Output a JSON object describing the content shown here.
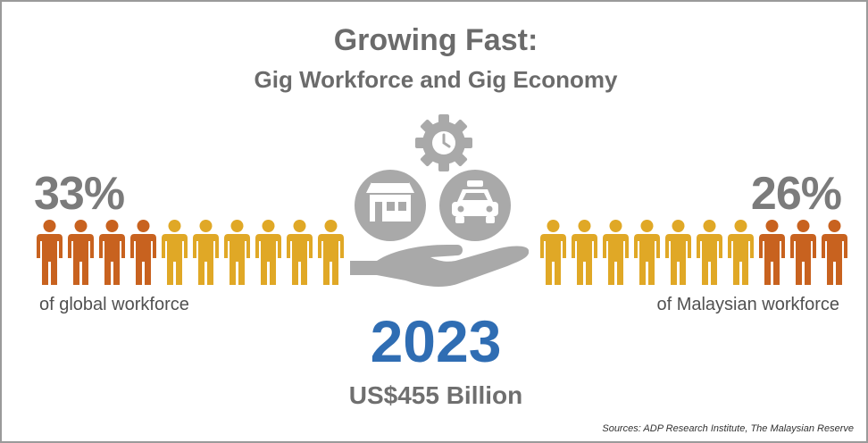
{
  "title": {
    "main": "Growing Fast:",
    "sub": "Gig Workforce and Gig Economy"
  },
  "left_stat": {
    "value": "33%",
    "caption": "of global workforce",
    "people_total": 10,
    "people_highlighted": 4,
    "highlight_side": "left"
  },
  "right_stat": {
    "value": "26%",
    "caption": "of Malaysian workforce",
    "people_total": 10,
    "people_highlighted": 3,
    "highlight_side": "right"
  },
  "center": {
    "year": "2023",
    "amount": "US$455 Billion",
    "icons": [
      "gear-clock-icon",
      "storefront-icon",
      "car-icon",
      "open-hand-icon"
    ]
  },
  "source": "Sources: ADP Research Institute, The Malaysian Reserve",
  "colors": {
    "highlight": "#c8621f",
    "base": "#e0a826",
    "gray_text": "#6b6b6b",
    "year_blue": "#2f6db3",
    "icon_gray": "#a9a9a9"
  }
}
